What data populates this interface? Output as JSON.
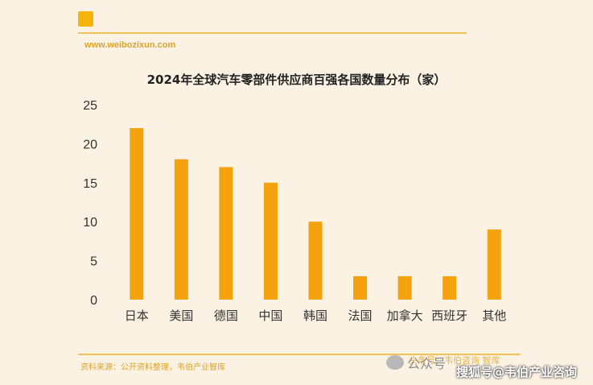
{
  "header": {
    "website": "www.weibozixun.com"
  },
  "chart_data": {
    "type": "bar",
    "title": "2024年全球汽车零部件供应商百强各国数量分布（家）",
    "categories": [
      "日本",
      "美国",
      "德国",
      "中国",
      "韩国",
      "法国",
      "加拿大",
      "西班牙",
      "其他"
    ],
    "values": [
      22,
      18,
      17,
      15,
      10,
      3,
      3,
      3,
      9
    ],
    "ylim": [
      0,
      25
    ],
    "yticks": [
      "0",
      "5",
      "10",
      "15",
      "20",
      "25"
    ],
    "xlabel": "",
    "ylabel": "",
    "grid": false,
    "bar_color": "#f5a20f"
  },
  "footer": {
    "source": "资料来源：公开资料整理，韦伯产业智库",
    "right_text": "头条号：韦伯咨询 智库",
    "watermark_wechat": "公众号",
    "watermark_sohu": "搜狐号@韦伯产业咨询"
  },
  "colors": {
    "background": "#fbf2e3",
    "accent": "#f5b30b",
    "bar": "#f5a20f"
  }
}
